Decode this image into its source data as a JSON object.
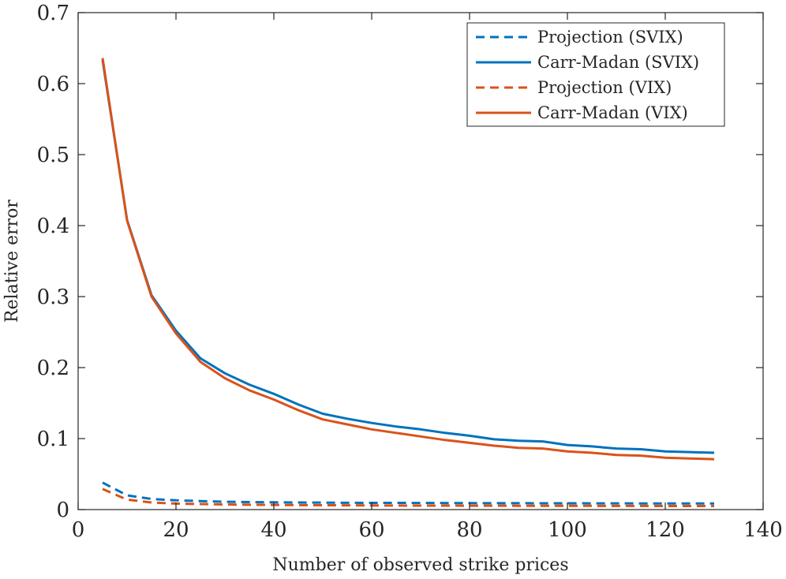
{
  "chart_data": {
    "type": "line",
    "xlabel": "Number of observed strike prices",
    "ylabel": "Relative error",
    "xlim": [
      0,
      140
    ],
    "ylim": [
      0,
      0.7
    ],
    "xticks": [
      0,
      20,
      40,
      60,
      80,
      100,
      120,
      140
    ],
    "yticks": [
      0,
      0.1,
      0.2,
      0.3,
      0.4,
      0.5,
      0.6,
      0.7
    ],
    "ytick_labels": [
      "0",
      "0.1",
      "0.2",
      "0.3",
      "0.4",
      "0.5",
      "0.6",
      "0.7"
    ],
    "grid": false,
    "legend_position": "top-right",
    "x": [
      5,
      10,
      15,
      20,
      25,
      30,
      35,
      40,
      45,
      50,
      55,
      60,
      65,
      70,
      75,
      80,
      85,
      90,
      95,
      100,
      105,
      110,
      115,
      120,
      125,
      130
    ],
    "series": [
      {
        "name": "Projection (SVIX)",
        "color": "#0072BD",
        "style": "dashed",
        "values": [
          0.038,
          0.02,
          0.015,
          0.013,
          0.012,
          0.011,
          0.0105,
          0.0102,
          0.01,
          0.0098,
          0.0096,
          0.0095,
          0.0094,
          0.0093,
          0.0092,
          0.0091,
          0.009,
          0.009,
          0.0089,
          0.0089,
          0.0088,
          0.0088,
          0.0087,
          0.0087,
          0.0087,
          0.0086
        ]
      },
      {
        "name": "Carr-Madan (SVIX)",
        "color": "#0072BD",
        "style": "solid",
        "values": [
          0.633,
          0.408,
          0.302,
          0.252,
          0.213,
          0.192,
          0.176,
          0.163,
          0.148,
          0.135,
          0.128,
          0.122,
          0.117,
          0.113,
          0.108,
          0.104,
          0.099,
          0.097,
          0.096,
          0.091,
          0.089,
          0.086,
          0.085,
          0.082,
          0.081,
          0.08
        ]
      },
      {
        "name": "Projection (VIX)",
        "color": "#D95319",
        "style": "dashed",
        "values": [
          0.029,
          0.014,
          0.01,
          0.0085,
          0.0078,
          0.0072,
          0.0068,
          0.0065,
          0.0063,
          0.0061,
          0.006,
          0.0058,
          0.0057,
          0.0056,
          0.0055,
          0.0054,
          0.0054,
          0.0053,
          0.0053,
          0.0052,
          0.0052,
          0.0051,
          0.0051,
          0.005,
          0.005,
          0.005
        ]
      },
      {
        "name": "Carr-Madan (VIX)",
        "color": "#D95319",
        "style": "solid",
        "values": [
          0.636,
          0.407,
          0.3,
          0.248,
          0.208,
          0.185,
          0.168,
          0.155,
          0.14,
          0.127,
          0.12,
          0.113,
          0.108,
          0.103,
          0.098,
          0.094,
          0.09,
          0.087,
          0.086,
          0.082,
          0.08,
          0.077,
          0.076,
          0.073,
          0.072,
          0.071
        ]
      }
    ]
  }
}
